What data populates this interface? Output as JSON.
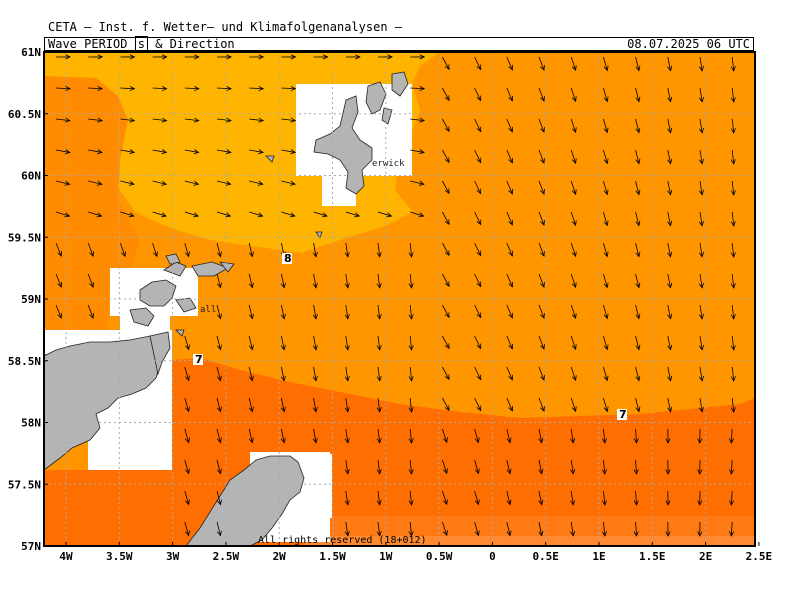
{
  "header": {
    "institute": "CETA — Inst. f. Wetter— und Klimafolgenanalysen —",
    "title_prefix": "Wave PERIOD",
    "unit": "s",
    "title_suffix": "& Direction",
    "timestamp": "08.07.2025 06 UTC"
  },
  "map": {
    "lat_ticks": [
      "61N",
      "60.5N",
      "60N",
      "59.5N",
      "59N",
      "58.5N",
      "58N",
      "57.5N",
      "57N"
    ],
    "lon_ticks": [
      "4W",
      "3.5W",
      "3W",
      "2.5W",
      "2W",
      "1.5W",
      "1W",
      "0.5W",
      "0",
      "0.5E",
      "1E",
      "1.5E",
      "2E",
      "2.5E"
    ],
    "contour_labels": [
      "8",
      "7",
      "7"
    ],
    "place_labels": [
      "erwick",
      "all"
    ],
    "footer": "All rights reserved (18+012)",
    "colors": {
      "period_8_9": "#ffb400",
      "period_7_8": "#ff9600",
      "period_6_7": "#ff6e00",
      "period_5_6": "#ff8c28",
      "land": "#b4b4b4",
      "nodata": "#ffffff"
    }
  }
}
